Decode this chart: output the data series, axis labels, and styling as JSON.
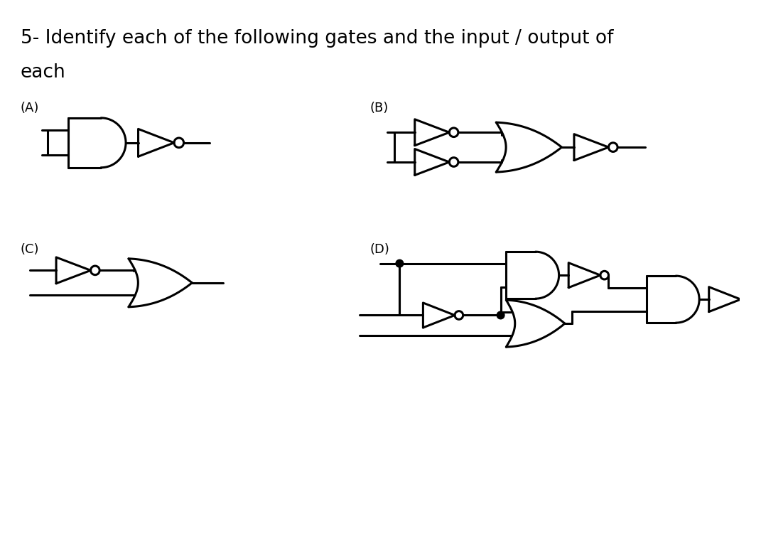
{
  "title_line1": "5- Identify each of the following gates and the input / output of",
  "title_line2": "each",
  "label_A": "(A)",
  "label_B": "(B)",
  "label_C": "(C)",
  "label_D": "(D)",
  "bg_color": "#ffffff",
  "line_color": "#000000",
  "lw": 2.2,
  "font_size_title": 19,
  "font_size_label": 13
}
